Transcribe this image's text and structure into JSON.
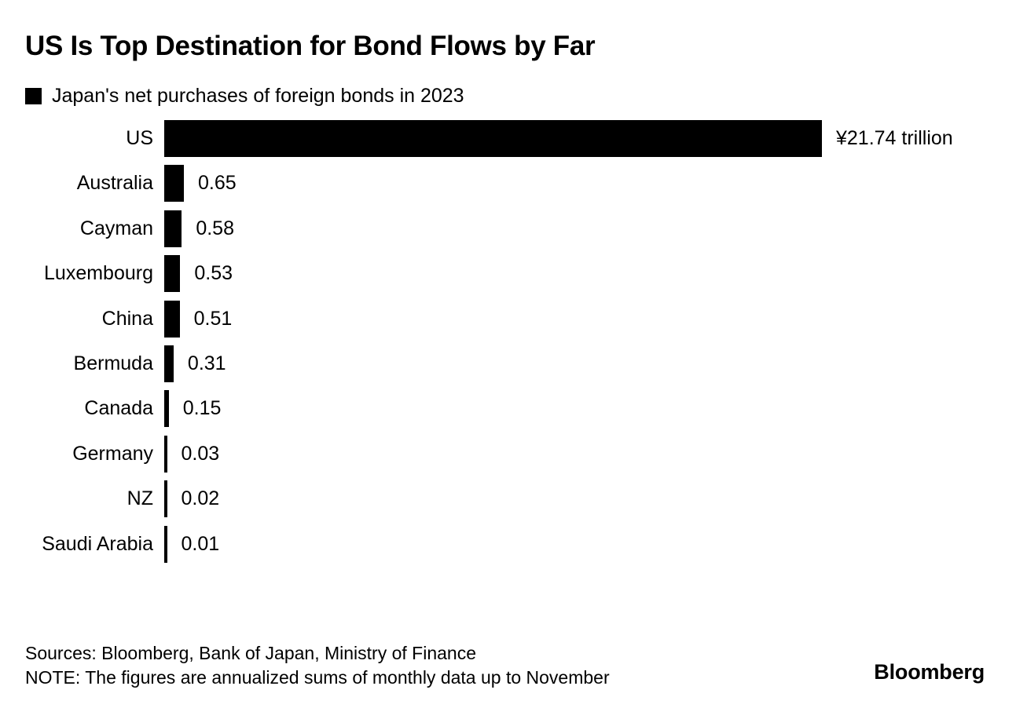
{
  "header": {
    "title": "US Is Top Destination for Bond Flows by Far"
  },
  "legend": {
    "label": "Japan's net purchases of foreign bonds in 2023",
    "swatch_color": "#000000"
  },
  "chart_data": {
    "type": "bar",
    "orientation": "horizontal",
    "title": "US Is Top Destination for Bond Flows by Far",
    "subtitle": "Japan's net purchases of foreign bonds in 2023",
    "unit": "trillion yen",
    "categories": [
      "US",
      "Australia",
      "Cayman",
      "Luxembourg",
      "China",
      "Bermuda",
      "Canada",
      "Germany",
      "NZ",
      "Saudi Arabia"
    ],
    "values": [
      21.74,
      0.65,
      0.58,
      0.53,
      0.51,
      0.31,
      0.15,
      0.03,
      0.02,
      0.01
    ],
    "value_labels": [
      "¥21.74 trillion",
      "0.65",
      "0.58",
      "0.53",
      "0.51",
      "0.31",
      "0.15",
      "0.03",
      "0.02",
      "0.01"
    ],
    "xlim": [
      0,
      21.74
    ],
    "bar_color": "#000000",
    "grid": false,
    "legend_position": "top-left"
  },
  "footer": {
    "sources": "Sources: Bloomberg, Bank of Japan, Ministry of Finance",
    "note": "NOTE: The figures are annualized sums of monthly data up to November",
    "brand": "Bloomberg"
  }
}
